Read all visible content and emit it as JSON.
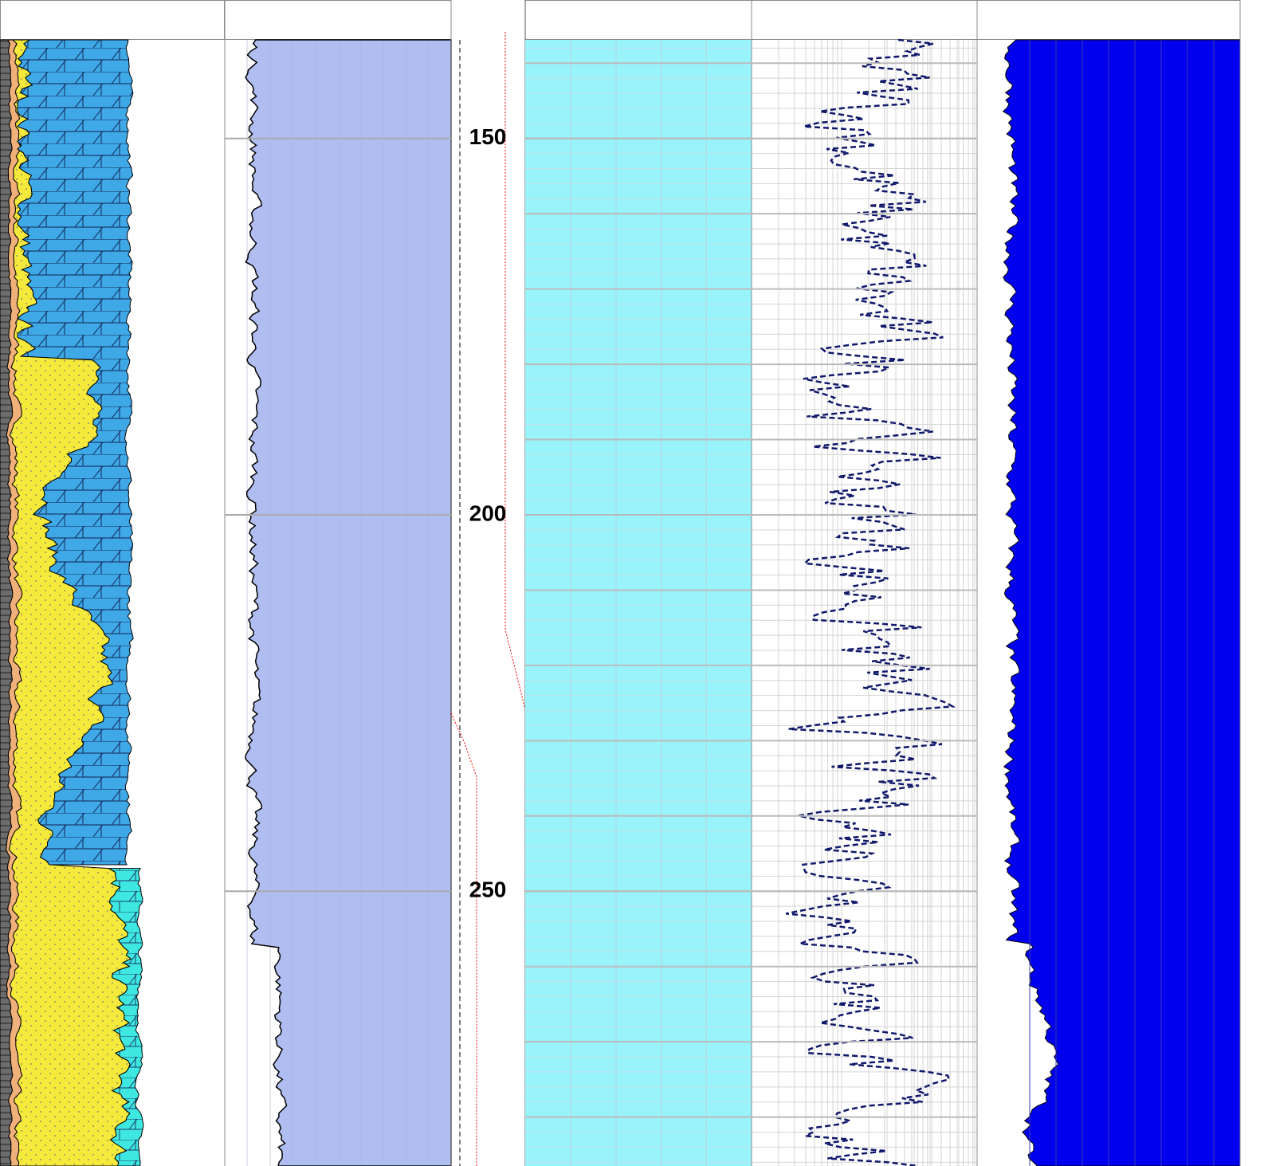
{
  "chart_data": {
    "type": "well-log",
    "ylim": [
      136.9,
      286.5
    ],
    "yticks": [
      150,
      200,
      250
    ],
    "grid": true
  }
}
